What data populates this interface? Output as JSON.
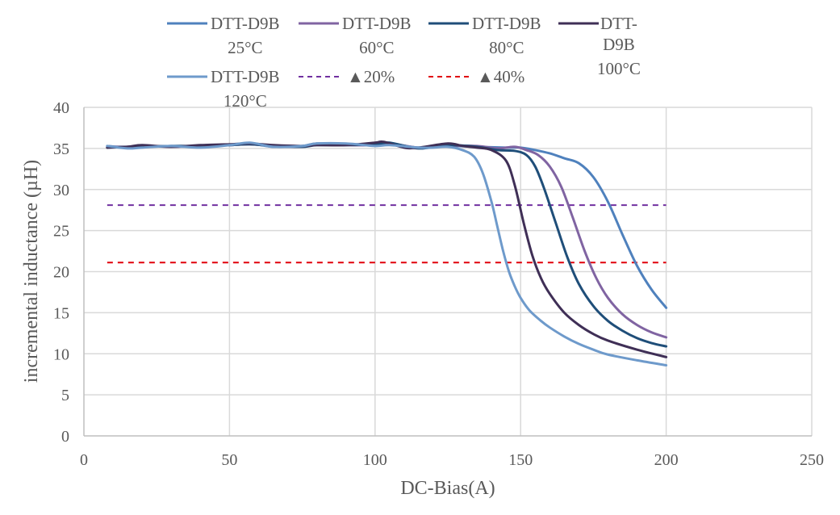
{
  "chart_data": {
    "type": "line",
    "title": "",
    "xlabel": "DC-Bias(A)",
    "ylabel": "incremental inductance (µH)",
    "xlim": [
      0,
      250
    ],
    "ylim": [
      0,
      40
    ],
    "xticks": [
      0,
      50,
      100,
      150,
      200,
      250
    ],
    "yticks": [
      0,
      5,
      10,
      15,
      20,
      25,
      30,
      35,
      40
    ],
    "grid": true,
    "legend_position": "top",
    "series": [
      {
        "name": "DTT-D9B 25°C",
        "label_line1": "DTT-D9B",
        "label_line2": "25°C",
        "color": "#4F81BD",
        "dash": "solid",
        "x": [
          8,
          15,
          20,
          30,
          40,
          50,
          57,
          65,
          75,
          80,
          90,
          100,
          105,
          115,
          125,
          135,
          145,
          150,
          155,
          160,
          165,
          170,
          175,
          180,
          185,
          190,
          195,
          200
        ],
        "y": [
          35.3,
          35.1,
          35.2,
          35.3,
          35.2,
          35.4,
          35.6,
          35.2,
          35.3,
          35.6,
          35.5,
          35.4,
          35.6,
          35.1,
          35.3,
          35.2,
          35.1,
          35.1,
          34.8,
          34.4,
          33.8,
          33.2,
          31.5,
          28.5,
          24.5,
          20.7,
          17.8,
          15.6
        ]
      },
      {
        "name": "DTT-D9B 60°C",
        "label_line1": "DTT-D9B",
        "label_line2": "60°C",
        "color": "#8064A2",
        "dash": "solid",
        "x": [
          8,
          15,
          20,
          30,
          40,
          50,
          57,
          65,
          75,
          80,
          90,
          100,
          105,
          115,
          125,
          135,
          142,
          148,
          152,
          156,
          160,
          164,
          168,
          172,
          176,
          180,
          185,
          190,
          195,
          200
        ],
        "y": [
          35.2,
          35.2,
          35.3,
          35.2,
          35.3,
          35.4,
          35.5,
          35.3,
          35.2,
          35.5,
          35.4,
          35.4,
          35.6,
          35.1,
          35.3,
          35.3,
          35.0,
          35.2,
          34.8,
          34.2,
          32.8,
          30.3,
          26.5,
          22.5,
          19.2,
          16.8,
          14.8,
          13.5,
          12.6,
          12.0
        ]
      },
      {
        "name": "DTT-D9B 80°C",
        "label_line1": "DTT-D9B",
        "label_line2": "80°C",
        "color": "#1F4E79",
        "dash": "solid",
        "x": [
          8,
          15,
          20,
          30,
          40,
          50,
          57,
          65,
          75,
          80,
          90,
          100,
          105,
          115,
          125,
          135,
          142,
          148,
          152,
          155,
          158,
          162,
          166,
          170,
          175,
          180,
          185,
          190,
          195,
          200
        ],
        "y": [
          35.1,
          35.2,
          35.2,
          35.3,
          35.3,
          35.4,
          35.5,
          35.3,
          35.2,
          35.4,
          35.4,
          35.5,
          35.7,
          35.0,
          35.4,
          35.2,
          34.8,
          34.7,
          34.2,
          32.8,
          30.2,
          26.0,
          21.8,
          18.5,
          15.8,
          14.0,
          12.8,
          11.9,
          11.3,
          10.9
        ]
      },
      {
        "name": "DTT-D9B 100°C",
        "label_line1": "DTT-D9B",
        "label_line2": "100°C",
        "color": "#3F2F56",
        "dash": "solid",
        "x": [
          8,
          15,
          20,
          30,
          40,
          50,
          57,
          65,
          75,
          80,
          90,
          100,
          103,
          110,
          115,
          125,
          130,
          135,
          140,
          145,
          148,
          151,
          154,
          157,
          160,
          165,
          170,
          175,
          180,
          190,
          200
        ],
        "y": [
          35.1,
          35.2,
          35.4,
          35.2,
          35.4,
          35.5,
          35.6,
          35.4,
          35.3,
          35.4,
          35.4,
          35.7,
          35.8,
          35.1,
          35.1,
          35.6,
          35.3,
          35.1,
          34.8,
          33.5,
          30.5,
          26.0,
          22.0,
          19.2,
          17.3,
          15.0,
          13.5,
          12.4,
          11.6,
          10.5,
          9.6
        ]
      },
      {
        "name": "DTT-D9B 120°C",
        "label_line1": "DTT-D9B",
        "label_line2": "120°C",
        "color": "#6E9ACB",
        "dash": "solid",
        "x": [
          8,
          15,
          20,
          30,
          40,
          50,
          57,
          65,
          75,
          80,
          90,
          100,
          105,
          115,
          120,
          125,
          130,
          134,
          137,
          140,
          142,
          144,
          146,
          148,
          150,
          153,
          157,
          160,
          165,
          170,
          175,
          180,
          190,
          200
        ],
        "y": [
          35.3,
          35.0,
          35.1,
          35.3,
          35.1,
          35.4,
          35.7,
          35.2,
          35.3,
          35.6,
          35.6,
          35.3,
          35.4,
          35.1,
          35.1,
          35.2,
          34.8,
          34.0,
          32.0,
          28.5,
          25.5,
          22.5,
          20.0,
          18.2,
          16.8,
          15.3,
          14.0,
          13.2,
          12.1,
          11.2,
          10.5,
          9.9,
          9.2,
          8.6
        ]
      },
      {
        "name": "▲20%",
        "label_line1": "▲20%",
        "label_line2": "",
        "color": "#7030A0",
        "dash": "dashed",
        "x": [
          8,
          200
        ],
        "y": [
          28.1,
          28.1
        ]
      },
      {
        "name": "▲40%",
        "label_line1": "▲40%",
        "label_line2": "",
        "color": "#E0000A",
        "dash": "dashed",
        "x": [
          8,
          200
        ],
        "y": [
          21.1,
          21.1
        ]
      }
    ]
  }
}
